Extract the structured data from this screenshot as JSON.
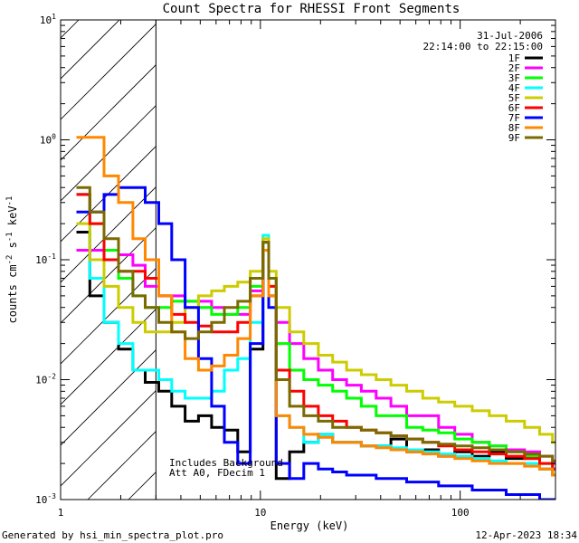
{
  "chart_data": {
    "type": "line",
    "title": "Count Spectra for RHESSI Front Segments",
    "xlabel": "Energy (keV)",
    "ylabel_base": "counts cm",
    "ylabel_sup1": "-2",
    "ylabel_mid": " s",
    "ylabel_sup2": "-1",
    "ylabel_end": " keV",
    "ylabel_sup3": "-1",
    "x_scale": "log",
    "y_scale": "log",
    "xlim": [
      1,
      300
    ],
    "ylim": [
      0.001,
      10
    ],
    "x_ticks": [
      {
        "value": 1,
        "label": "1"
      },
      {
        "value": 10,
        "label": "10"
      },
      {
        "value": 100,
        "label": "100"
      }
    ],
    "y_ticks": [
      {
        "exp": 1,
        "base": "10",
        "sup": "1"
      },
      {
        "exp": 0,
        "base": "10",
        "sup": "0"
      },
      {
        "exp": -1,
        "base": "10",
        "sup": "-1"
      },
      {
        "exp": -2,
        "base": "10",
        "sup": "-2"
      },
      {
        "exp": -3,
        "base": "10",
        "sup": "-3"
      }
    ],
    "hatched_region_max_energy": 3,
    "annotations": {
      "date": "31-Jul-2006",
      "time_range": "22:14:00 to 22:15:00",
      "note1": "Includes Background",
      "note2": "Att A0, FDecim 1"
    },
    "footer_left": "Generated by hsi_min_spectra_plot.pro",
    "footer_right": "12-Apr-2023 18:34",
    "energy_bins": [
      1.2,
      1.4,
      1.65,
      1.95,
      2.3,
      2.65,
      3.1,
      3.6,
      4.2,
      4.9,
      5.7,
      6.6,
      7.7,
      8.9,
      10.3,
      11.0,
      12.0,
      14.0,
      16.5,
      19.5,
      23.0,
      27.0,
      32.0,
      38.0,
      45.0,
      54.0,
      65.0,
      78.0,
      94.0,
      115.0,
      140.0,
      170.0,
      210.0,
      250.0,
      290.0
    ],
    "series": [
      {
        "name": "1F",
        "color": "#000000",
        "values": [
          0.17,
          0.05,
          0.03,
          0.018,
          0.012,
          0.0095,
          0.008,
          0.006,
          0.0045,
          0.005,
          0.004,
          0.0038,
          0.0025,
          0.018,
          0.14,
          0.05,
          0.0015,
          0.0025,
          0.003,
          0.0035,
          0.003,
          0.003,
          0.0028,
          0.0028,
          0.0032,
          0.0025,
          0.0026,
          0.0023,
          0.0025,
          0.0023,
          0.0025,
          0.0022,
          0.0022,
          0.0018,
          0.0016
        ]
      },
      {
        "name": "2F",
        "color": "#ff00ff",
        "values": [
          0.12,
          0.12,
          0.12,
          0.11,
          0.09,
          0.06,
          0.05,
          0.05,
          0.045,
          0.045,
          0.04,
          0.035,
          0.035,
          0.055,
          0.14,
          0.07,
          0.03,
          0.02,
          0.015,
          0.012,
          0.01,
          0.009,
          0.008,
          0.007,
          0.006,
          0.005,
          0.005,
          0.004,
          0.0035,
          0.003,
          0.0028,
          0.0026,
          0.0025,
          0.0023,
          0.002
        ]
      },
      {
        "name": "3F",
        "color": "#00ff00",
        "values": [
          0.35,
          0.2,
          0.12,
          0.07,
          0.05,
          0.04,
          0.04,
          0.045,
          0.045,
          0.04,
          0.035,
          0.035,
          0.04,
          0.06,
          0.12,
          0.07,
          0.02,
          0.012,
          0.01,
          0.009,
          0.008,
          0.007,
          0.006,
          0.005,
          0.005,
          0.004,
          0.0038,
          0.0036,
          0.0032,
          0.003,
          0.0028,
          0.0025,
          0.0023,
          0.002,
          0.0018
        ]
      },
      {
        "name": "4F",
        "color": "#00ffff",
        "values": [
          0.35,
          0.07,
          0.03,
          0.02,
          0.012,
          0.012,
          0.01,
          0.008,
          0.007,
          0.007,
          0.008,
          0.012,
          0.015,
          0.03,
          0.16,
          0.06,
          0.005,
          0.004,
          0.003,
          0.0035,
          0.003,
          0.003,
          0.0028,
          0.0028,
          0.0027,
          0.0026,
          0.0025,
          0.0024,
          0.0023,
          0.0022,
          0.0021,
          0.002,
          0.002,
          0.0018,
          0.0016
        ]
      },
      {
        "name": "5F",
        "color": "#cccc00",
        "values": [
          0.2,
          0.1,
          0.06,
          0.04,
          0.03,
          0.025,
          0.025,
          0.03,
          0.04,
          0.05,
          0.055,
          0.06,
          0.065,
          0.08,
          0.15,
          0.08,
          0.04,
          0.025,
          0.02,
          0.016,
          0.014,
          0.012,
          0.011,
          0.01,
          0.009,
          0.008,
          0.007,
          0.0065,
          0.006,
          0.0055,
          0.005,
          0.0045,
          0.004,
          0.0035,
          0.003
        ]
      },
      {
        "name": "6F",
        "color": "#ff0000",
        "values": [
          0.35,
          0.2,
          0.1,
          0.08,
          0.08,
          0.07,
          0.05,
          0.035,
          0.03,
          0.028,
          0.025,
          0.025,
          0.03,
          0.05,
          0.12,
          0.06,
          0.012,
          0.008,
          0.006,
          0.005,
          0.0045,
          0.004,
          0.0038,
          0.0036,
          0.0034,
          0.0032,
          0.003,
          0.0028,
          0.0026,
          0.0025,
          0.0024,
          0.0023,
          0.0022,
          0.002,
          0.0018
        ]
      },
      {
        "name": "7F",
        "color": "#0000ff",
        "values": [
          0.25,
          0.25,
          0.35,
          0.4,
          0.4,
          0.3,
          0.2,
          0.1,
          0.04,
          0.015,
          0.006,
          0.003,
          0.002,
          0.02,
          0.12,
          0.04,
          0.002,
          0.0015,
          0.002,
          0.0018,
          0.0017,
          0.0016,
          0.0016,
          0.0015,
          0.0015,
          0.0014,
          0.0014,
          0.0013,
          0.0013,
          0.0012,
          0.0012,
          0.0011,
          0.0011,
          0.001,
          0.001
        ]
      },
      {
        "name": "8F",
        "color": "#ff8800",
        "values": [
          1.05,
          1.05,
          0.5,
          0.3,
          0.15,
          0.1,
          0.05,
          0.025,
          0.015,
          0.012,
          0.013,
          0.016,
          0.022,
          0.05,
          0.12,
          0.05,
          0.005,
          0.004,
          0.0035,
          0.0033,
          0.003,
          0.003,
          0.0028,
          0.0027,
          0.0026,
          0.0025,
          0.0024,
          0.0023,
          0.0022,
          0.0021,
          0.002,
          0.002,
          0.0019,
          0.0018,
          0.0016
        ]
      },
      {
        "name": "9F",
        "color": "#7a6a00",
        "values": [
          0.4,
          0.25,
          0.15,
          0.08,
          0.05,
          0.04,
          0.03,
          0.025,
          0.022,
          0.025,
          0.03,
          0.04,
          0.045,
          0.07,
          0.14,
          0.07,
          0.01,
          0.006,
          0.005,
          0.0045,
          0.004,
          0.004,
          0.0038,
          0.0036,
          0.0034,
          0.0032,
          0.003,
          0.0029,
          0.0028,
          0.0027,
          0.0026,
          0.0025,
          0.0024,
          0.0023,
          0.0021
        ]
      }
    ]
  }
}
